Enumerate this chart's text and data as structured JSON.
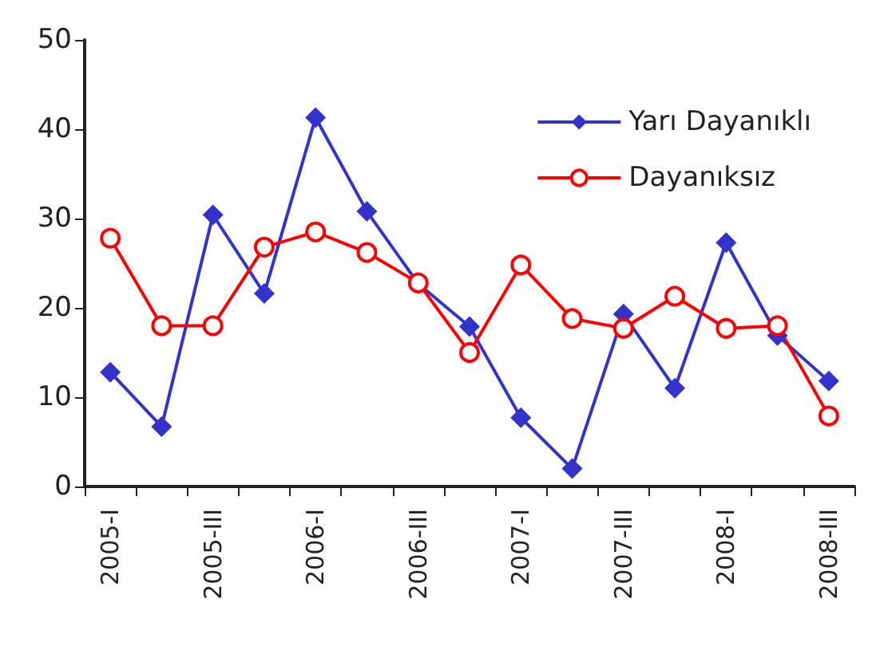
{
  "chart_data": {
    "type": "line",
    "categories": [
      "2005-I",
      null,
      "2005-III",
      null,
      "2006-I",
      null,
      "2006-III",
      null,
      "2007-I",
      null,
      "2007-III",
      null,
      "2008-I",
      null,
      "2008-III"
    ],
    "series": [
      {
        "name": "Yarı Dayanıklı",
        "color": "#3333cc",
        "marker": "diamond",
        "values": [
          12.8,
          6.7,
          30.4,
          21.6,
          41.3,
          30.8,
          22.7,
          17.9,
          7.7,
          2.0,
          19.3,
          11.0,
          27.3,
          16.9,
          11.8
        ]
      },
      {
        "name": "Dayanıksız",
        "color": "#ff0000",
        "marker": "circle",
        "values": [
          27.8,
          18.0,
          18.0,
          26.8,
          28.5,
          26.2,
          22.8,
          15.0,
          24.8,
          18.8,
          17.7,
          21.3,
          17.7,
          18.0,
          7.9
        ]
      }
    ],
    "ylim": [
      0,
      50
    ],
    "yticks": [
      0,
      10,
      20,
      30,
      40,
      50
    ],
    "grid": false,
    "legend": "top right"
  }
}
